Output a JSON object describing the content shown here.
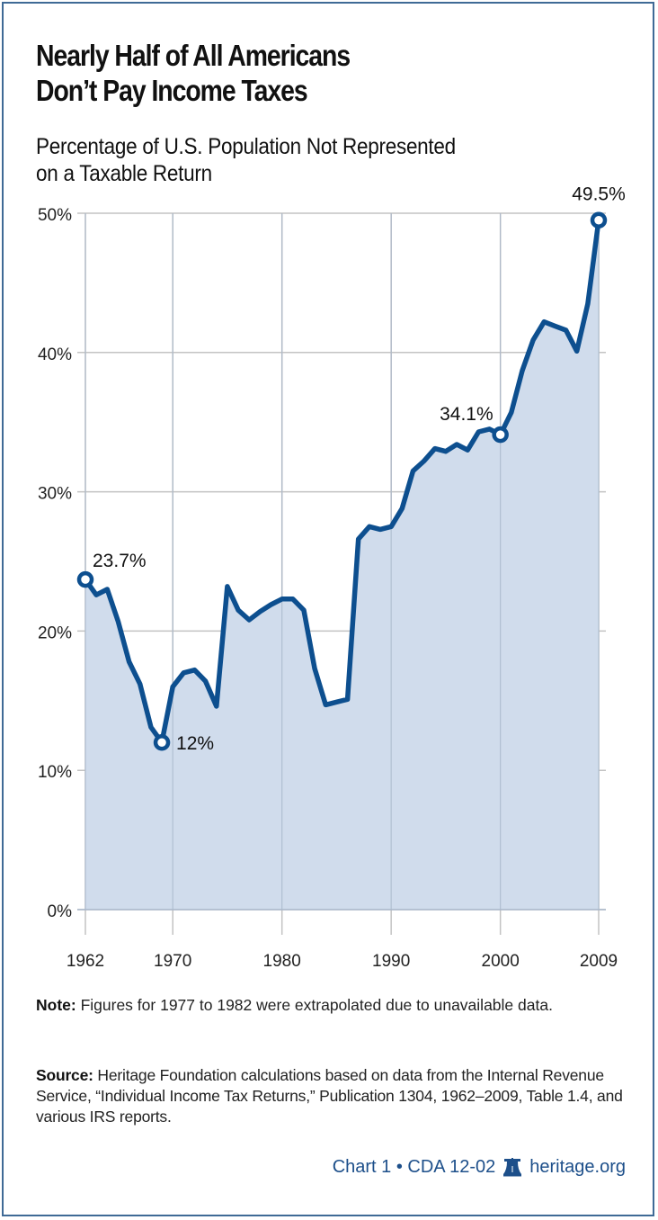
{
  "header": {
    "title_line1": "Nearly Half of All Americans",
    "title_line2": "Don’t Pay Income Taxes",
    "subtitle_line1": "Percentage of U.S. Population Not Represented",
    "subtitle_line2": "on a Taxable Return"
  },
  "footer": {
    "note_label": "Note:",
    "note_text": " Figures for 1977 to 1982 were extrapolated due to unavailable data.",
    "source_label": "Source:",
    "source_text": " Heritage Foundation calculations based on data from the Internal Revenue Service, “Individual Income Tax Returns,” Publication 1304, 1962–2009, Table 1.4, and various IRS reports.",
    "chart_id": "Chart 1 • CDA 12-02",
    "logo_icon": "liberty-bell-icon",
    "site": "heritage.org"
  },
  "colors": {
    "line": "#0d4f8f",
    "fill": "#d0dcec",
    "grid": "#c3c3c3",
    "frame": "#3f6a96",
    "credit": "#1d4f8a"
  },
  "chart_data": {
    "type": "area",
    "title": "Nearly Half of All Americans Don’t Pay Income Taxes",
    "subtitle": "Percentage of U.S. Population Not Represented on a Taxable Return",
    "xlabel": "",
    "ylabel": "",
    "ylim": [
      0,
      50
    ],
    "yticks": [
      "0%",
      "10%",
      "20%",
      "30%",
      "40%",
      "50%"
    ],
    "xticks": [
      "1962",
      "1970",
      "1980",
      "1990",
      "2000",
      "2009"
    ],
    "grid": true,
    "legend": null,
    "x": [
      1962,
      1963,
      1964,
      1965,
      1966,
      1967,
      1968,
      1969,
      1970,
      1971,
      1972,
      1973,
      1974,
      1975,
      1976,
      1977,
      1978,
      1979,
      1980,
      1981,
      1982,
      1983,
      1984,
      1985,
      1986,
      1987,
      1988,
      1989,
      1990,
      1991,
      1992,
      1993,
      1994,
      1995,
      1996,
      1997,
      1998,
      1999,
      2000,
      2001,
      2002,
      2003,
      2004,
      2005,
      2006,
      2007,
      2008,
      2009
    ],
    "series": [
      {
        "name": "Percentage not represented on a taxable return",
        "values": [
          23.7,
          22.6,
          23.0,
          20.7,
          17.8,
          16.2,
          13.1,
          12.0,
          16.0,
          17.0,
          17.2,
          16.4,
          14.6,
          23.2,
          21.5,
          20.8,
          21.4,
          21.9,
          22.3,
          22.3,
          21.5,
          17.3,
          14.7,
          14.9,
          15.1,
          26.6,
          27.5,
          27.3,
          27.5,
          28.8,
          31.5,
          32.2,
          33.1,
          32.9,
          33.4,
          33.0,
          34.3,
          34.5,
          34.1,
          35.7,
          38.7,
          40.9,
          42.2,
          41.9,
          41.6,
          40.1,
          43.5,
          49.5
        ]
      }
    ],
    "annotations": [
      {
        "x": 1962,
        "y": 23.7,
        "label": "23.7%"
      },
      {
        "x": 1969,
        "y": 12.0,
        "label": "12%"
      },
      {
        "x": 2000,
        "y": 34.1,
        "label": "34.1%"
      },
      {
        "x": 2009,
        "y": 49.5,
        "label": "49.5%"
      }
    ]
  }
}
